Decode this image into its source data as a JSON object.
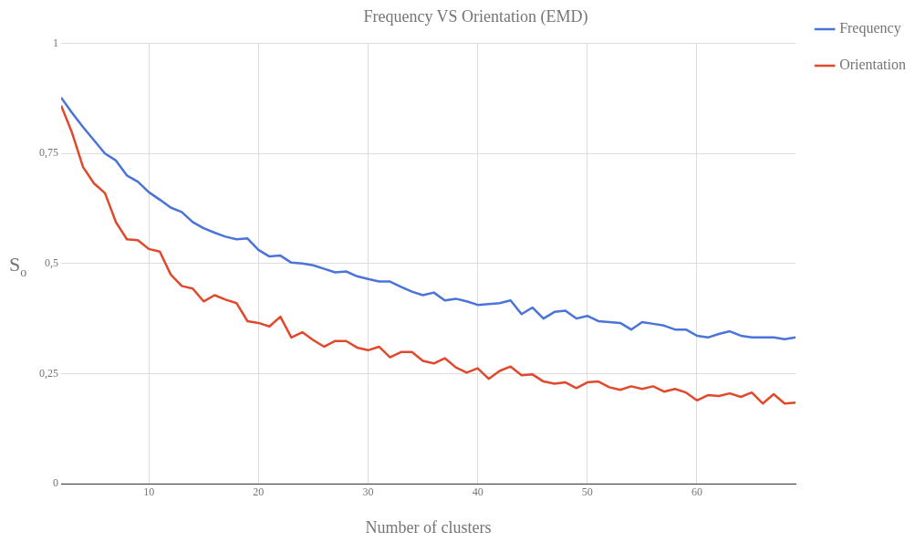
{
  "chart_data": {
    "type": "line",
    "title": "Frequency VS Orientation (EMD)",
    "xlabel": "Number of clusters",
    "ylabel": "S$_{o}$",
    "x": [
      2,
      3,
      4,
      5,
      6,
      7,
      8,
      9,
      10,
      11,
      12,
      13,
      14,
      15,
      16,
      17,
      18,
      19,
      20,
      21,
      22,
      23,
      24,
      25,
      26,
      27,
      28,
      29,
      30,
      31,
      32,
      33,
      34,
      35,
      36,
      37,
      38,
      39,
      40,
      41,
      42,
      43,
      44,
      45,
      46,
      47,
      48,
      49,
      50,
      51,
      52,
      53,
      54,
      55,
      56,
      57,
      58,
      59,
      60,
      61,
      62,
      63,
      64,
      65,
      66,
      67,
      68,
      69
    ],
    "series": [
      {
        "name": "Frequency",
        "color": "#4a74d9",
        "values": [
          0.877,
          0.842,
          0.81,
          0.78,
          0.75,
          0.734,
          0.7,
          0.686,
          0.662,
          0.645,
          0.627,
          0.617,
          0.594,
          0.58,
          0.57,
          0.561,
          0.555,
          0.557,
          0.531,
          0.516,
          0.518,
          0.502,
          0.5,
          0.496,
          0.488,
          0.48,
          0.482,
          0.471,
          0.465,
          0.459,
          0.459,
          0.447,
          0.436,
          0.428,
          0.434,
          0.416,
          0.42,
          0.414,
          0.406,
          0.408,
          0.41,
          0.416,
          0.385,
          0.4,
          0.375,
          0.39,
          0.393,
          0.375,
          0.381,
          0.369,
          0.367,
          0.365,
          0.35,
          0.367,
          0.363,
          0.359,
          0.35,
          0.35,
          0.336,
          0.332,
          0.34,
          0.346,
          0.336,
          0.332,
          0.332,
          0.332,
          0.328,
          0.332
        ]
      },
      {
        "name": "Orientation",
        "color": "#e0492c",
        "values": [
          0.859,
          0.797,
          0.719,
          0.682,
          0.66,
          0.594,
          0.555,
          0.553,
          0.533,
          0.527,
          0.475,
          0.449,
          0.443,
          0.414,
          0.428,
          0.418,
          0.41,
          0.369,
          0.365,
          0.357,
          0.379,
          0.332,
          0.344,
          0.326,
          0.311,
          0.324,
          0.324,
          0.309,
          0.303,
          0.311,
          0.287,
          0.299,
          0.299,
          0.279,
          0.273,
          0.285,
          0.264,
          0.252,
          0.262,
          0.238,
          0.256,
          0.266,
          0.246,
          0.248,
          0.232,
          0.227,
          0.23,
          0.217,
          0.23,
          0.232,
          0.219,
          0.213,
          0.221,
          0.215,
          0.221,
          0.209,
          0.215,
          0.207,
          0.189,
          0.201,
          0.199,
          0.205,
          0.197,
          0.207,
          0.182,
          0.203,
          0.182,
          0.184
        ]
      }
    ],
    "xlim": [
      2,
      69
    ],
    "xticks": [
      10,
      20,
      30,
      40,
      50,
      60
    ],
    "ylim": [
      0,
      1
    ],
    "yticks": [
      {
        "value": 0,
        "label": "0"
      },
      {
        "value": 0.25,
        "label": "0,25"
      },
      {
        "value": 0.5,
        "label": "0,5"
      },
      {
        "value": 0.75,
        "label": "0,75"
      },
      {
        "value": 1,
        "label": "1"
      }
    ],
    "grid": true,
    "legend": "top right",
    "marker": "none",
    "line_style": "solid"
  }
}
